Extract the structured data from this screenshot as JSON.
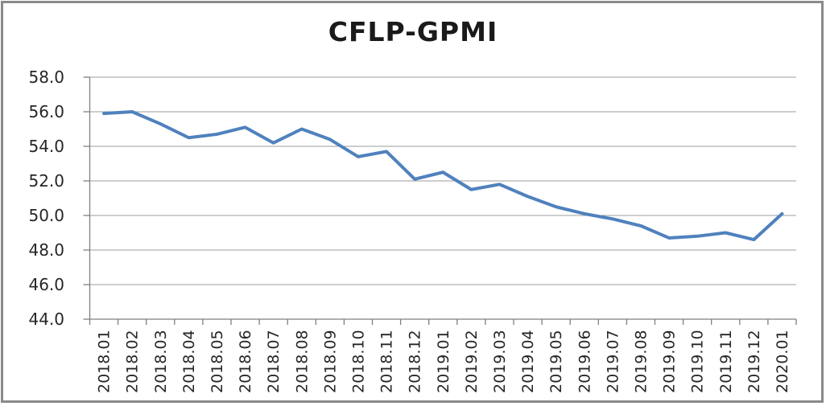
{
  "chart_data": {
    "type": "line",
    "title": "CFLP-GPMI",
    "categories": [
      "2018.01",
      "2018.02",
      "2018.03",
      "2018.04",
      "2018.05",
      "2018.06",
      "2018.07",
      "2018.08",
      "2018.09",
      "2018.10",
      "2018.11",
      "2018.12",
      "2019.01",
      "2019.02",
      "2019.03",
      "2019.04",
      "2019.05",
      "2019.06",
      "2019.07",
      "2019.08",
      "2019.09",
      "2019.10",
      "2019.11",
      "2019.12",
      "2020.01"
    ],
    "series": [
      {
        "name": "CFLP-GPMI",
        "values": [
          55.9,
          56.0,
          55.3,
          54.5,
          54.7,
          55.1,
          54.2,
          55.0,
          54.4,
          53.4,
          53.7,
          52.1,
          52.5,
          51.5,
          51.8,
          51.1,
          50.5,
          50.1,
          49.8,
          49.4,
          48.7,
          48.8,
          49.0,
          48.6,
          50.1
        ]
      }
    ],
    "xlabel": "",
    "ylabel": "",
    "ylim": [
      44.0,
      58.0
    ],
    "ytick_step": 2.0,
    "ytick_labels": [
      "58.0",
      "56.0",
      "54.0",
      "52.0",
      "50.0",
      "48.0",
      "46.0",
      "44.0"
    ],
    "grid": true,
    "legend_position": "none",
    "colors": {
      "line": "#4f81bd",
      "gridline": "#9d9d9d",
      "axis": "#7f7f7f",
      "tick_text": "#262626",
      "title_text": "#1a1a1a",
      "frame_border": "#8a8a8a",
      "background": "#ffffff"
    }
  }
}
